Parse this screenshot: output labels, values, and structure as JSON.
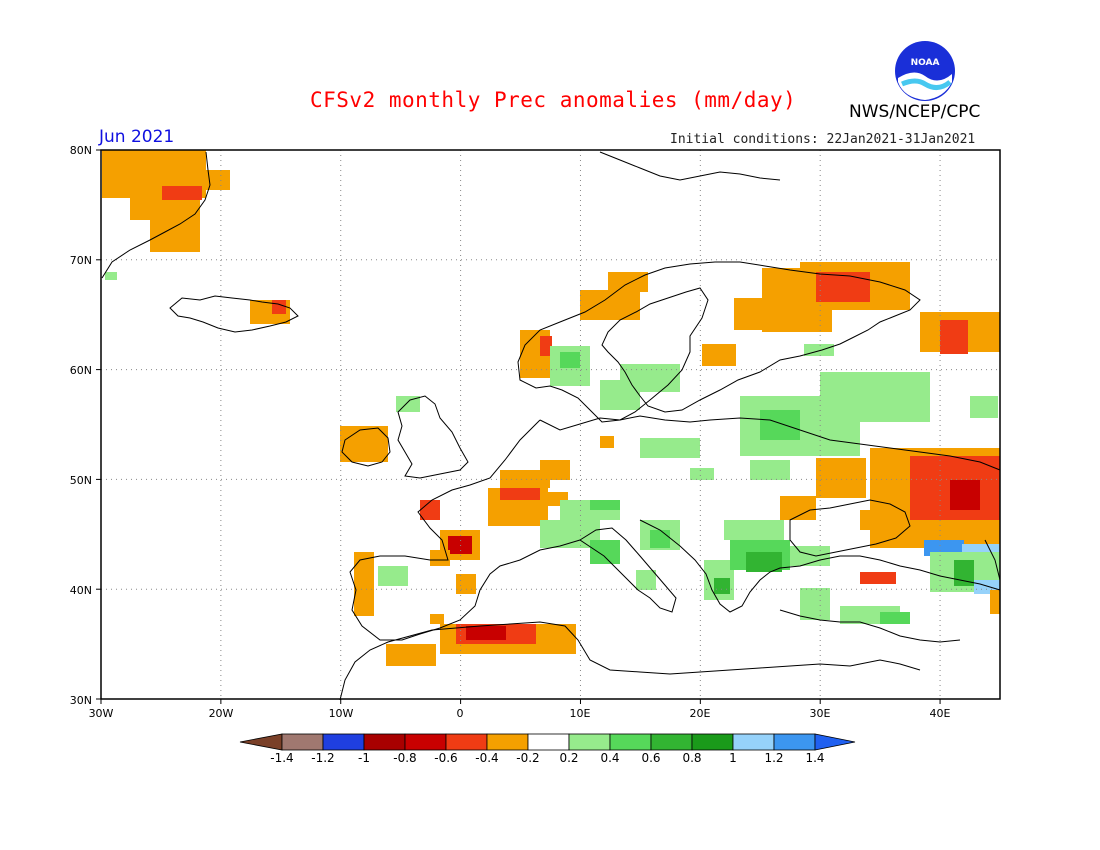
{
  "header": {
    "title": "CFSv2 monthly Prec anomalies (mm/day)",
    "month": "Jun 2021",
    "initial_conditions": "Initial conditions: 22Jan2021-31Jan2021",
    "agency": "NWS/NCEP/CPC",
    "logo_text": "NOAA"
  },
  "map": {
    "lon_range": [
      -30,
      45
    ],
    "lat_range": [
      30,
      80
    ],
    "lat_ticks": [
      "80N",
      "70N",
      "60N",
      "50N",
      "40N",
      "30N"
    ],
    "lon_ticks": [
      "30W",
      "20W",
      "10W",
      "0",
      "10E",
      "20E",
      "30E",
      "40E"
    ],
    "grid": true
  },
  "colorbar": {
    "labels": [
      "-1.4",
      "-1.2",
      "-1",
      "-0.8",
      "-0.6",
      "-0.4",
      "-0.2",
      "0.2",
      "0.4",
      "0.6",
      "0.8",
      "1",
      "1.2",
      "1.4"
    ],
    "colors": [
      "#7a4028",
      "#a07870",
      "#1f3fe0",
      "#a80000",
      "#c80000",
      "#f03c14",
      "#f5a000",
      "#ffffff",
      "#96eb8c",
      "#56d85a",
      "#32b432",
      "#1a9a1a",
      "#96d2fa",
      "#3c96f0",
      "#2060f0"
    ]
  }
}
